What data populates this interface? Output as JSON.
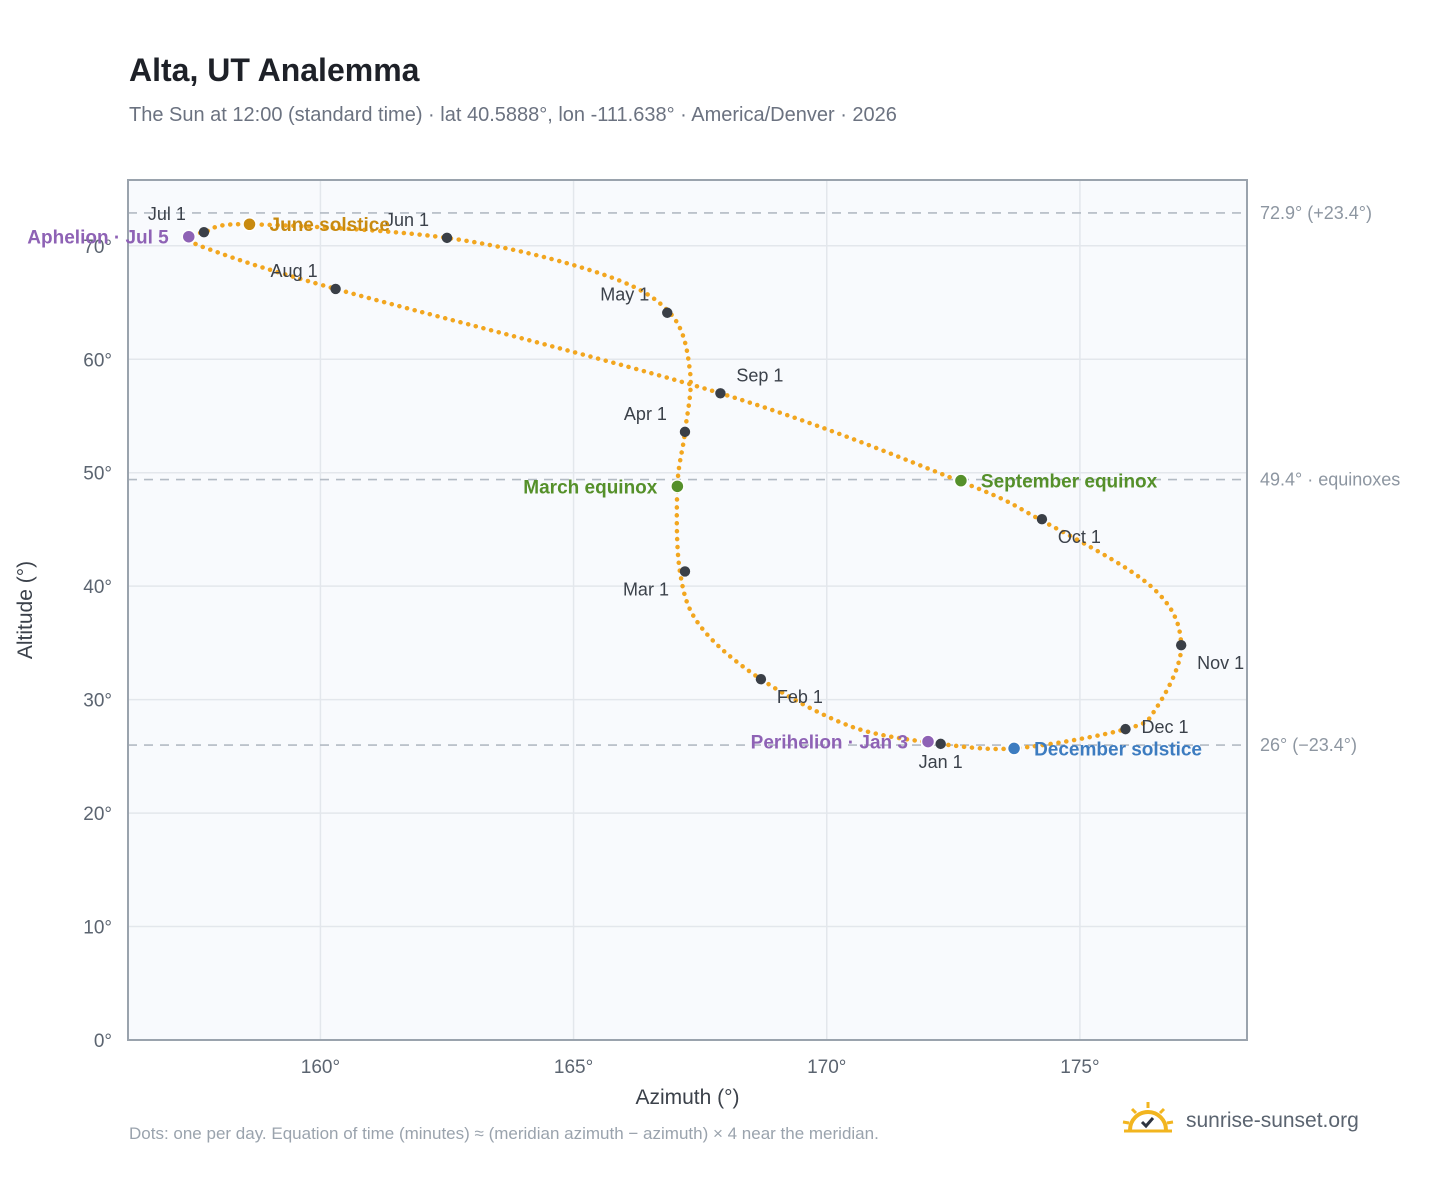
{
  "header": {
    "title": "Alta, UT Analemma",
    "subtitle": "The Sun at 12:00 (standard time) · lat 40.5888°, lon -111.638° · America/Denver · 2026"
  },
  "footer": {
    "note": "Dots: one per day. Equation of time (minutes) ≈ (meridian azimuth − azimuth) × 4 near the meridian.",
    "brand": "sunrise-sunset.org"
  },
  "colors": {
    "curve": "#f2a61f",
    "month_dot": "#3a3f47",
    "june_solstice": "#c88a10",
    "december_solstice": "#3d7cc0",
    "equinox": "#55902a",
    "apsides": "#8e62b5",
    "plot_bg": "#f8fafd",
    "grid": "#e3e7ec",
    "frame": "#9aa3ad"
  },
  "chart_data": {
    "type": "scatter",
    "xlabel": "Azimuth (°)",
    "ylabel": "Altitude (°)",
    "xlim": [
      156.2,
      178.3
    ],
    "ylim": [
      0,
      75.8
    ],
    "x_ticks": [
      {
        "value": 160,
        "label": "160°"
      },
      {
        "value": 165,
        "label": "165°"
      },
      {
        "value": 170,
        "label": "170°"
      },
      {
        "value": 175,
        "label": "175°"
      }
    ],
    "y_ticks": [
      {
        "value": 0,
        "label": "0°"
      },
      {
        "value": 10,
        "label": "10°"
      },
      {
        "value": 20,
        "label": "20°"
      },
      {
        "value": 30,
        "label": "30°"
      },
      {
        "value": 40,
        "label": "40°"
      },
      {
        "value": 50,
        "label": "50°"
      },
      {
        "value": 60,
        "label": "60°"
      },
      {
        "value": 70,
        "label": "70°"
      }
    ],
    "grid": true,
    "reference_lines": [
      {
        "y": 72.9,
        "label": "72.9° (+23.4°)"
      },
      {
        "y": 49.4,
        "label": "49.4° · equinoxes"
      },
      {
        "y": 26.0,
        "label": "26° (−23.4°)"
      }
    ],
    "analemma_path": [
      {
        "az": 172.2,
        "alt": 26.1
      },
      {
        "az": 170.5,
        "alt": 27.6
      },
      {
        "az": 168.7,
        "alt": 31.8
      },
      {
        "az": 167.5,
        "alt": 36.5
      },
      {
        "az": 167.1,
        "alt": 41.3
      },
      {
        "az": 167.05,
        "alt": 48.8
      },
      {
        "az": 167.2,
        "alt": 53.6
      },
      {
        "az": 167.3,
        "alt": 58.9
      },
      {
        "az": 166.9,
        "alt": 64.1
      },
      {
        "az": 165.5,
        "alt": 67.6
      },
      {
        "az": 162.5,
        "alt": 70.7
      },
      {
        "az": 158.6,
        "alt": 71.9
      },
      {
        "az": 157.7,
        "alt": 71.2
      },
      {
        "az": 157.4,
        "alt": 70.8
      },
      {
        "az": 157.8,
        "alt": 69.7
      },
      {
        "az": 160.3,
        "alt": 66.2
      },
      {
        "az": 167.9,
        "alt": 57.0
      },
      {
        "az": 172.6,
        "alt": 49.3
      },
      {
        "az": 174.2,
        "alt": 45.9
      },
      {
        "az": 176.4,
        "alt": 40.0
      },
      {
        "az": 177.0,
        "alt": 34.8
      },
      {
        "az": 176.5,
        "alt": 29.2
      },
      {
        "az": 175.9,
        "alt": 27.4
      },
      {
        "az": 173.7,
        "alt": 25.7
      },
      {
        "az": 172.2,
        "alt": 26.1
      }
    ],
    "month_markers": [
      {
        "label": "Jan 1",
        "az": 172.25,
        "alt": 26.1,
        "anchor": "below"
      },
      {
        "label": "Feb 1",
        "az": 168.7,
        "alt": 31.8,
        "anchor": "below-right"
      },
      {
        "label": "Mar 1",
        "az": 167.2,
        "alt": 41.3,
        "anchor": "below-left"
      },
      {
        "label": "Apr 1",
        "az": 167.2,
        "alt": 53.6,
        "anchor": "upper-left"
      },
      {
        "label": "May 1",
        "az": 166.85,
        "alt": 64.1,
        "anchor": "upper-left"
      },
      {
        "label": "Jun 1",
        "az": 162.5,
        "alt": 70.7,
        "anchor": "upper-left"
      },
      {
        "label": "Jul 1",
        "az": 157.7,
        "alt": 71.2,
        "anchor": "upper-left"
      },
      {
        "label": "Aug 1",
        "az": 160.3,
        "alt": 66.2,
        "anchor": "upper-left"
      },
      {
        "label": "Sep 1",
        "az": 167.9,
        "alt": 57.0,
        "anchor": "upper-right"
      },
      {
        "label": "Oct 1",
        "az": 174.25,
        "alt": 45.9,
        "anchor": "below-right"
      },
      {
        "label": "Nov 1",
        "az": 177.0,
        "alt": 34.8,
        "anchor": "below-right"
      },
      {
        "label": "Dec 1",
        "az": 175.9,
        "alt": 27.4,
        "anchor": "right"
      }
    ],
    "events": [
      {
        "label": "June solstice",
        "az": 158.6,
        "alt": 71.9,
        "color": "#c88a10",
        "side": "right"
      },
      {
        "label": "December solstice",
        "az": 173.7,
        "alt": 25.7,
        "color": "#3d7cc0",
        "side": "right"
      },
      {
        "label": "March equinox",
        "az": 167.05,
        "alt": 48.8,
        "color": "#55902a",
        "side": "left"
      },
      {
        "label": "September equinox",
        "az": 172.65,
        "alt": 49.3,
        "color": "#55902a",
        "side": "right"
      },
      {
        "label": "Aphelion · Jul 5",
        "az": 157.4,
        "alt": 70.8,
        "color": "#8e62b5",
        "side": "left"
      },
      {
        "label": "Perihelion · Jan 3",
        "az": 172.0,
        "alt": 26.3,
        "color": "#8e62b5",
        "side": "left"
      }
    ]
  }
}
